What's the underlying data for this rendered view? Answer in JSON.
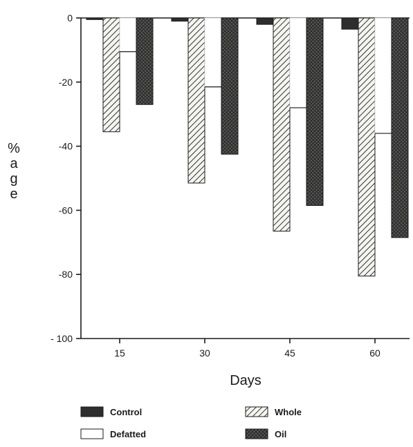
{
  "chart_data": {
    "type": "bar",
    "title": "",
    "xlabel": "Days",
    "ylabel_chars": [
      "%",
      "a",
      "g",
      "e"
    ],
    "categories": [
      "15",
      "30",
      "45",
      "60"
    ],
    "ylim": [
      -100,
      0
    ],
    "yticks": [
      0,
      -20,
      -40,
      -60,
      -80,
      -100
    ],
    "ytick_labels": [
      "0",
      "-20",
      "-40",
      "-60",
      "-80",
      "- 100"
    ],
    "series": [
      {
        "name": "Control",
        "values": [
          -0.5,
          -1,
          -2,
          -3.5
        ],
        "fill": "solid",
        "color": "#2e2e2e"
      },
      {
        "name": "Whole",
        "values": [
          -35.5,
          -51.5,
          -66.5,
          -80.5
        ],
        "fill": "hatch",
        "color": "#3a3a3a"
      },
      {
        "name": "Defatted",
        "values": [
          -10.5,
          -21.5,
          -28,
          -36
        ],
        "fill": "empty",
        "color": "#3a3a3a"
      },
      {
        "name": "Oil",
        "values": [
          -27,
          -42.5,
          -58.5,
          -68.5
        ],
        "fill": "crosshatch",
        "color": "#3a3a3a"
      }
    ],
    "legend": {
      "placement": "bottom",
      "entries": [
        {
          "name": "Control",
          "fill": "solid"
        },
        {
          "name": "Whole",
          "fill": "hatch"
        },
        {
          "name": "Defatted",
          "fill": "empty"
        },
        {
          "name": "Oil",
          "fill": "crosshatch"
        }
      ]
    },
    "grid": false
  }
}
